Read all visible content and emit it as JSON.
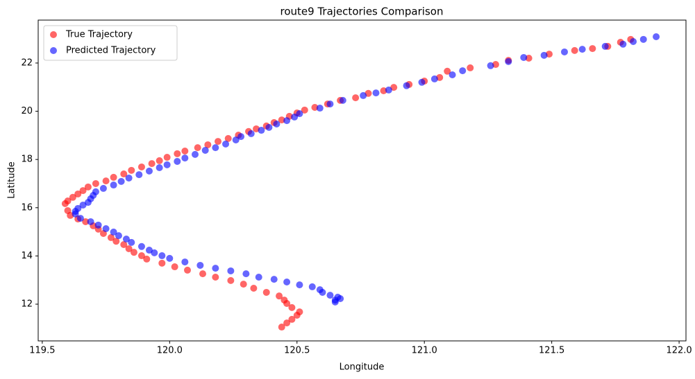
{
  "chart_data": {
    "type": "scatter",
    "title": "route9 Trajectories Comparison",
    "x_label": "Longitude",
    "y_label": "Latitude",
    "xlim": [
      119.484,
      122.027
    ],
    "ylim": [
      10.477,
      23.78
    ],
    "xticks": [
      119.5,
      {
        "value": 120,
        "label": "120.0"
      },
      120.5,
      {
        "value": 121,
        "label": "121.0"
      },
      121.5,
      {
        "value": 122,
        "label": "122.0"
      }
    ],
    "yticks": [
      12,
      14,
      16,
      18,
      20,
      22
    ],
    "grid": false,
    "legend": "upper left",
    "alpha": 0.6,
    "series": [
      {
        "name": "True Trajectory",
        "color": "#ff0000",
        "x": [
          121.81,
          121.77,
          121.72,
          121.66,
          121.59,
          121.49,
          121.41,
          121.33,
          121.28,
          121.18,
          121.09,
          121.06,
          121.0,
          120.94,
          120.88,
          120.84,
          120.78,
          120.73,
          120.67,
          120.62,
          120.57,
          120.53,
          120.5,
          120.47,
          120.44,
          120.41,
          120.38,
          120.34,
          120.31,
          120.27,
          120.23,
          120.19,
          120.15,
          120.11,
          120.06,
          120.03,
          119.99,
          119.96,
          119.93,
          119.89,
          119.85,
          119.82,
          119.78,
          119.75,
          119.71,
          119.68,
          119.66,
          119.64,
          119.62,
          119.6,
          119.59,
          119.6,
          119.61,
          119.64,
          119.67,
          119.7,
          119.72,
          119.74,
          119.77,
          119.79,
          119.82,
          119.84,
          119.86,
          119.89,
          119.91,
          119.97,
          120.02,
          120.07,
          120.13,
          120.18,
          120.24,
          120.29,
          120.33,
          120.38,
          120.43,
          120.45,
          120.46,
          120.48,
          120.51,
          120.5,
          120.48,
          120.46,
          120.44
        ],
        "values": [
          22.98,
          22.86,
          22.69,
          22.6,
          22.52,
          22.37,
          22.2,
          22.11,
          21.94,
          21.8,
          21.66,
          21.4,
          21.25,
          21.11,
          20.99,
          20.85,
          20.74,
          20.56,
          20.45,
          20.3,
          20.16,
          20.05,
          19.93,
          19.79,
          19.64,
          19.53,
          19.39,
          19.27,
          19.16,
          19.01,
          18.87,
          18.75,
          18.61,
          18.49,
          18.35,
          18.24,
          18.09,
          17.95,
          17.83,
          17.69,
          17.55,
          17.4,
          17.26,
          17.11,
          17.0,
          16.86,
          16.71,
          16.57,
          16.43,
          16.28,
          16.17,
          15.88,
          15.68,
          15.53,
          15.42,
          15.25,
          15.11,
          14.93,
          14.76,
          14.61,
          14.47,
          14.3,
          14.15,
          14.01,
          13.87,
          13.7,
          13.55,
          13.41,
          13.26,
          13.12,
          12.98,
          12.83,
          12.66,
          12.49,
          12.34,
          12.17,
          12.03,
          11.86,
          11.68,
          11.54,
          11.37,
          11.22,
          11.05
        ]
      },
      {
        "name": "Predicted Trajectory",
        "color": "#0000ff",
        "x": [
          121.91,
          121.86,
          121.82,
          121.78,
          121.71,
          121.62,
          121.55,
          121.47,
          121.39,
          121.33,
          121.26,
          121.15,
          121.11,
          121.04,
          120.99,
          120.93,
          120.86,
          120.81,
          120.76,
          120.68,
          120.63,
          120.59,
          120.51,
          120.49,
          120.46,
          120.42,
          120.39,
          120.36,
          120.32,
          120.28,
          120.26,
          120.22,
          120.18,
          120.14,
          120.1,
          120.06,
          120.03,
          119.99,
          119.96,
          119.92,
          119.88,
          119.84,
          119.81,
          119.78,
          119.74,
          119.71,
          119.7,
          119.69,
          119.68,
          119.66,
          119.64,
          119.63,
          119.63,
          119.65,
          119.69,
          119.72,
          119.75,
          119.78,
          119.8,
          119.83,
          119.85,
          119.89,
          119.92,
          119.94,
          119.97,
          120.0,
          120.06,
          120.12,
          120.18,
          120.24,
          120.3,
          120.35,
          120.41,
          120.46,
          120.51,
          120.56,
          120.59,
          120.6,
          120.63,
          120.66,
          120.67,
          120.65,
          120.65
        ],
        "values": [
          23.09,
          22.98,
          22.89,
          22.78,
          22.69,
          22.57,
          22.46,
          22.32,
          22.23,
          22.06,
          21.89,
          21.68,
          21.51,
          21.34,
          21.2,
          21.06,
          20.88,
          20.76,
          20.65,
          20.45,
          20.3,
          20.13,
          19.9,
          19.76,
          19.61,
          19.47,
          19.33,
          19.21,
          19.07,
          18.95,
          18.81,
          18.64,
          18.49,
          18.38,
          18.21,
          18.06,
          17.92,
          17.78,
          17.66,
          17.52,
          17.37,
          17.23,
          17.09,
          16.94,
          16.8,
          16.66,
          16.51,
          16.37,
          16.22,
          16.11,
          15.97,
          15.85,
          15.74,
          15.56,
          15.42,
          15.28,
          15.13,
          14.99,
          14.84,
          14.7,
          14.56,
          14.39,
          14.24,
          14.13,
          14.01,
          13.9,
          13.75,
          13.61,
          13.49,
          13.38,
          13.26,
          13.12,
          13.03,
          12.92,
          12.8,
          12.72,
          12.6,
          12.49,
          12.37,
          12.29,
          12.23,
          12.17,
          12.09
        ]
      }
    ]
  }
}
